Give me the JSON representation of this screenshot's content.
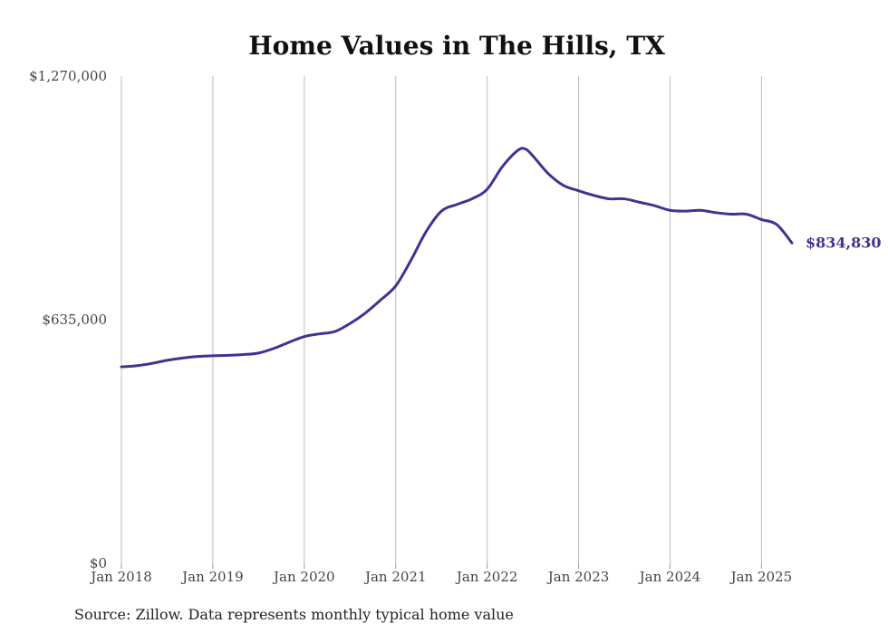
{
  "chart_data": {
    "type": "line",
    "title": "Home Values in The Hills, TX",
    "xlabel": "",
    "ylabel": "",
    "ylim": [
      0,
      1270000
    ],
    "y_ticks": [
      "$1,270,000",
      "$635,000",
      "$0"
    ],
    "y_tick_values": [
      1270000,
      635000,
      0
    ],
    "x_ticks": [
      "Jan 2018",
      "Jan 2019",
      "Jan 2020",
      "Jan 2021",
      "Jan 2022",
      "Jan 2023",
      "Jan 2024",
      "Jan 2025"
    ],
    "x_tick_values": [
      "2018-01",
      "2019-01",
      "2020-01",
      "2021-01",
      "2022-01",
      "2023-01",
      "2024-01",
      "2025-01"
    ],
    "xlim": [
      "2018-01",
      "2025-05"
    ],
    "grid": "vertical",
    "color": "#3d3491",
    "end_label": "$834,830",
    "series": [
      {
        "x": [
          "2018-01",
          "2018-03",
          "2018-05",
          "2018-07",
          "2018-09",
          "2018-11",
          "2019-01",
          "2019-03",
          "2019-05",
          "2019-07",
          "2019-09",
          "2019-11",
          "2020-01",
          "2020-03",
          "2020-05",
          "2020-07",
          "2020-09",
          "2020-11",
          "2021-01",
          "2021-03",
          "2021-05",
          "2021-07",
          "2021-09",
          "2021-11",
          "2022-01",
          "2022-03",
          "2022-05",
          "2022-06",
          "2022-07",
          "2022-09",
          "2022-11",
          "2023-01",
          "2023-03",
          "2023-05",
          "2023-07",
          "2023-09",
          "2023-11",
          "2024-01",
          "2024-03",
          "2024-05",
          "2024-07",
          "2024-09",
          "2024-11",
          "2025-01",
          "2025-03",
          "2025-05"
        ],
        "values": [
          512000,
          515000,
          521000,
          529000,
          535000,
          539000,
          541000,
          542000,
          544000,
          548000,
          560000,
          576000,
          591000,
          598000,
          604000,
          625000,
          652000,
          686000,
          723000,
          790000,
          865000,
          918000,
          935000,
          950000,
          975000,
          1034000,
          1076000,
          1080000,
          1062000,
          1016000,
          985000,
          971000,
          959000,
          950000,
          950000,
          941000,
          932000,
          920000,
          918000,
          920000,
          914000,
          910000,
          910000,
          896000,
          883000,
          834830
        ]
      }
    ]
  },
  "source_note": "Source: Zillow. Data represents monthly typical home value"
}
